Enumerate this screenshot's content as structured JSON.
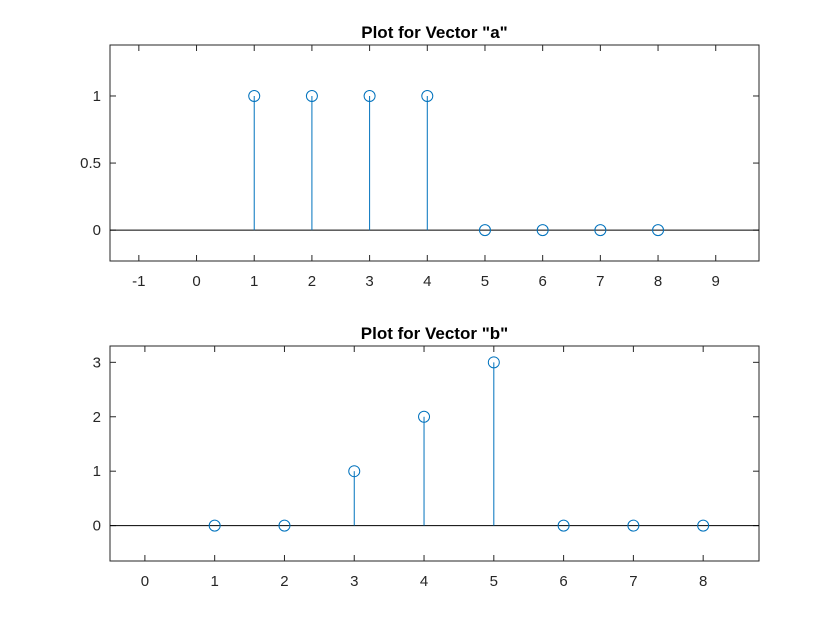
{
  "chart_data": [
    {
      "type": "stem",
      "title": "Plot for Vector \"a\"",
      "xlabel": "",
      "ylabel": "",
      "x": [
        1,
        2,
        3,
        4,
        5,
        6,
        7,
        8
      ],
      "values": [
        1,
        1,
        1,
        1,
        0,
        0,
        0,
        0
      ],
      "xlim": [
        -1.5,
        9.75
      ],
      "ylim": [
        -0.23,
        1.38
      ],
      "xticks": [
        -1,
        0,
        1,
        2,
        3,
        4,
        5,
        6,
        7,
        8,
        9
      ],
      "yticks": [
        0,
        0.5,
        1
      ],
      "ytick_labels": [
        "0",
        "0.5",
        "1"
      ],
      "baseline": 0,
      "grid": false,
      "color": "#0072BD"
    },
    {
      "type": "stem",
      "title": "Plot for Vector \"b\"",
      "xlabel": "",
      "ylabel": "",
      "x": [
        1,
        2,
        3,
        4,
        5,
        6,
        7,
        8
      ],
      "values": [
        0,
        0,
        1,
        2,
        3,
        0,
        0,
        0
      ],
      "xlim": [
        -0.5,
        8.8
      ],
      "ylim": [
        -0.65,
        3.3
      ],
      "xticks": [
        0,
        1,
        2,
        3,
        4,
        5,
        6,
        7,
        8
      ],
      "yticks": [
        0,
        1,
        2,
        3
      ],
      "ytick_labels": [
        "0",
        "1",
        "2",
        "3"
      ],
      "baseline": 0,
      "grid": false,
      "color": "#0072BD"
    }
  ]
}
